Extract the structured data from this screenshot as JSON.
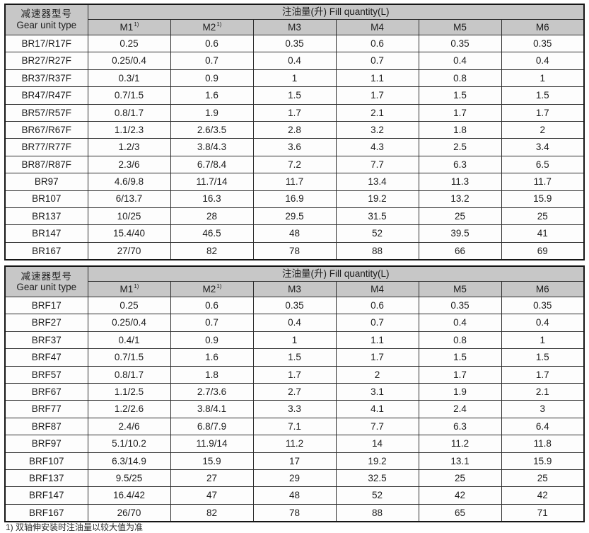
{
  "colors": {
    "header_bg": "#c7c7c7",
    "border": "#2e2e2e",
    "outer_border": "#161616",
    "text": "#1c1c1c",
    "row_bg": "#fdfdfd"
  },
  "header": {
    "row_label_cn": "减速器型号",
    "row_label_en": "Gear unit type",
    "fill_label": "注油量(升) Fill quantity(L)",
    "columns": [
      {
        "label": "M1",
        "sup": "1)"
      },
      {
        "label": "M2",
        "sup": "1)"
      },
      {
        "label": "M3",
        "sup": ""
      },
      {
        "label": "M4",
        "sup": ""
      },
      {
        "label": "M5",
        "sup": ""
      },
      {
        "label": "M6",
        "sup": ""
      }
    ]
  },
  "tables": [
    {
      "name": "br-series-fill-quantity",
      "rows": [
        {
          "type": "BR17/R17F",
          "values": [
            "0.25",
            "0.6",
            "0.35",
            "0.6",
            "0.35",
            "0.35"
          ]
        },
        {
          "type": "BR27/R27F",
          "values": [
            "0.25/0.4",
            "0.7",
            "0.4",
            "0.7",
            "0.4",
            "0.4"
          ]
        },
        {
          "type": "BR37/R37F",
          "values": [
            "0.3/1",
            "0.9",
            "1",
            "1.1",
            "0.8",
            "1"
          ]
        },
        {
          "type": "BR47/R47F",
          "values": [
            "0.7/1.5",
            "1.6",
            "1.5",
            "1.7",
            "1.5",
            "1.5"
          ]
        },
        {
          "type": "BR57/R57F",
          "values": [
            "0.8/1.7",
            "1.9",
            "1.7",
            "2.1",
            "1.7",
            "1.7"
          ]
        },
        {
          "type": "BR67/R67F",
          "values": [
            "1.1/2.3",
            "2.6/3.5",
            "2.8",
            "3.2",
            "1.8",
            "2"
          ]
        },
        {
          "type": "BR77/R77F",
          "values": [
            "1.2/3",
            "3.8/4.3",
            "3.6",
            "4.3",
            "2.5",
            "3.4"
          ]
        },
        {
          "type": "BR87/R87F",
          "values": [
            "2.3/6",
            "6.7/8.4",
            "7.2",
            "7.7",
            "6.3",
            "6.5"
          ]
        },
        {
          "type": "BR97",
          "values": [
            "4.6/9.8",
            "11.7/14",
            "11.7",
            "13.4",
            "11.3",
            "11.7"
          ]
        },
        {
          "type": "BR107",
          "values": [
            "6/13.7",
            "16.3",
            "16.9",
            "19.2",
            "13.2",
            "15.9"
          ]
        },
        {
          "type": "BR137",
          "values": [
            "10/25",
            "28",
            "29.5",
            "31.5",
            "25",
            "25"
          ]
        },
        {
          "type": "BR147",
          "values": [
            "15.4/40",
            "46.5",
            "48",
            "52",
            "39.5",
            "41"
          ]
        },
        {
          "type": "BR167",
          "values": [
            "27/70",
            "82",
            "78",
            "88",
            "66",
            "69"
          ]
        }
      ]
    },
    {
      "name": "brf-series-fill-quantity",
      "rows": [
        {
          "type": "BRF17",
          "values": [
            "0.25",
            "0.6",
            "0.35",
            "0.6",
            "0.35",
            "0.35"
          ]
        },
        {
          "type": "BRF27",
          "values": [
            "0.25/0.4",
            "0.7",
            "0.4",
            "0.7",
            "0.4",
            "0.4"
          ]
        },
        {
          "type": "BRF37",
          "values": [
            "0.4/1",
            "0.9",
            "1",
            "1.1",
            "0.8",
            "1"
          ]
        },
        {
          "type": "BRF47",
          "values": [
            "0.7/1.5",
            "1.6",
            "1.5",
            "1.7",
            "1.5",
            "1.5"
          ]
        },
        {
          "type": "BRF57",
          "values": [
            "0.8/1.7",
            "1.8",
            "1.7",
            "2",
            "1.7",
            "1.7"
          ]
        },
        {
          "type": "BRF67",
          "values": [
            "1.1/2.5",
            "2.7/3.6",
            "2.7",
            "3.1",
            "1.9",
            "2.1"
          ]
        },
        {
          "type": "BRF77",
          "values": [
            "1.2/2.6",
            "3.8/4.1",
            "3.3",
            "4.1",
            "2.4",
            "3"
          ]
        },
        {
          "type": "BRF87",
          "values": [
            "2.4/6",
            "6.8/7.9",
            "7.1",
            "7.7",
            "6.3",
            "6.4"
          ]
        },
        {
          "type": "BRF97",
          "values": [
            "5.1/10.2",
            "11.9/14",
            "11.2",
            "14",
            "11.2",
            "11.8"
          ]
        },
        {
          "type": "BRF107",
          "values": [
            "6.3/14.9",
            "15.9",
            "17",
            "19.2",
            "13.1",
            "15.9"
          ]
        },
        {
          "type": "BRF137",
          "values": [
            "9.5/25",
            "27",
            "29",
            "32.5",
            "25",
            "25"
          ]
        },
        {
          "type": "BRF147",
          "values": [
            "16.4/42",
            "47",
            "48",
            "52",
            "42",
            "42"
          ]
        },
        {
          "type": "BRF167",
          "values": [
            "26/70",
            "82",
            "78",
            "88",
            "65",
            "71"
          ]
        }
      ]
    }
  ],
  "footnote": {
    "text": "1) 双轴伸安装时注油量以较大值为准"
  }
}
